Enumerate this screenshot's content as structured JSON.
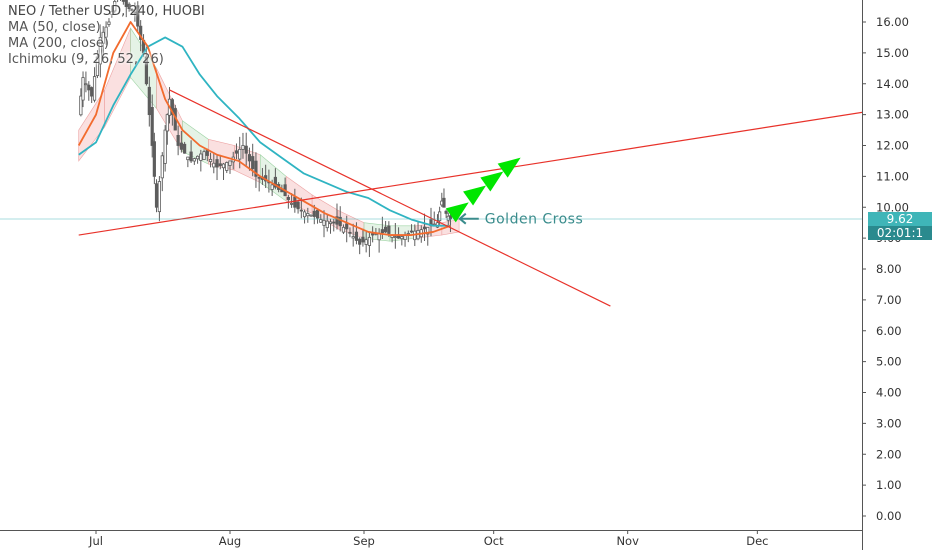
{
  "legend": {
    "title": "NEO / Tether USD, 240, HUOBI",
    "ma50": "MA (50, close)",
    "ma200": "MA (200, close)",
    "ichimoku": "Ichimoku (9, 26, 52, 26)"
  },
  "price_tags": {
    "last_price": "9.62",
    "countdown": "02:01:1"
  },
  "colors": {
    "candle": "#5d5d5d",
    "ma50": "#f26b2e",
    "ma200": "#2fb4c2",
    "trendline": "#e8322a",
    "cloud_bear": "#f5c7c7",
    "cloud_bull": "#cfe9d2",
    "arrow": "#00e600",
    "annotation": "#3a8c8c",
    "price_tag_bg": "#3fb5b8",
    "countdown_bg": "#2a8a8e",
    "axis_text": "#333333",
    "axis_line": "#555555"
  },
  "chart_data": {
    "type": "candlestick",
    "symbol": "NEO / Tether USD",
    "interval": "240",
    "exchange": "HUOBI",
    "y_axis": {
      "ticks": [
        "0.00",
        "1.00",
        "2.00",
        "3.00",
        "4.00",
        "5.00",
        "6.00",
        "7.00",
        "8.00",
        "9.00",
        "10.00",
        "11.00",
        "12.00",
        "13.00",
        "14.00",
        "15.00",
        "16.00"
      ],
      "range": [
        -0.3,
        16.8
      ]
    },
    "x_axis": {
      "ticks": [
        "Jul",
        "Aug",
        "Sep",
        "Oct",
        "Nov",
        "Dec"
      ]
    },
    "price_path": [
      [
        "Jun 27",
        13.0
      ],
      [
        "Jun 28",
        14.2
      ],
      [
        "Jun 30",
        13.6
      ],
      [
        "Jul 2",
        15.5
      ],
      [
        "Jul 4",
        16.0
      ],
      [
        "Jul 6",
        17.0
      ],
      [
        "Jul 8",
        16.5
      ],
      [
        "Jul 10",
        16.3
      ],
      [
        "Jul 12",
        15.0
      ],
      [
        "Jul 14",
        12.0
      ],
      [
        "Jul 15",
        10.0
      ],
      [
        "Jul 17",
        12.5
      ],
      [
        "Jul 18",
        13.5
      ],
      [
        "Jul 20",
        12.0
      ],
      [
        "Jul 23",
        11.5
      ],
      [
        "Jul 26",
        11.8
      ],
      [
        "Jul 29",
        11.3
      ],
      [
        "Aug 1",
        11.5
      ],
      [
        "Aug 4",
        12.0
      ],
      [
        "Aug 7",
        11.0
      ],
      [
        "Aug 10",
        10.8
      ],
      [
        "Aug 13",
        10.5
      ],
      [
        "Aug 16",
        10.0
      ],
      [
        "Aug 19",
        9.8
      ],
      [
        "Aug 22",
        9.6
      ],
      [
        "Aug 25",
        9.5
      ],
      [
        "Aug 28",
        9.3
      ],
      [
        "Aug 31",
        8.8
      ],
      [
        "Sep 3",
        9.1
      ],
      [
        "Sep 6",
        9.2
      ],
      [
        "Sep 9",
        9.0
      ],
      [
        "Sep 12",
        9.2
      ],
      [
        "Sep 15",
        9.3
      ],
      [
        "Sep 18",
        9.5
      ],
      [
        "Sep 19",
        10.2
      ],
      [
        "Sep 20",
        9.8
      ],
      [
        "Sep 21",
        9.62
      ]
    ],
    "ma50": [
      [
        "Jun 27",
        12.0
      ],
      [
        "Jul 1",
        13.0
      ],
      [
        "Jul 5",
        15.0
      ],
      [
        "Jul 9",
        16.0
      ],
      [
        "Jul 13",
        15.2
      ],
      [
        "Jul 17",
        13.5
      ],
      [
        "Jul 21",
        12.5
      ],
      [
        "Jul 25",
        12.0
      ],
      [
        "Jul 29",
        11.7
      ],
      [
        "Aug 3",
        11.5
      ],
      [
        "Aug 8",
        11.0
      ],
      [
        "Aug 13",
        10.6
      ],
      [
        "Aug 18",
        10.2
      ],
      [
        "Aug 23",
        9.8
      ],
      [
        "Aug 28",
        9.5
      ],
      [
        "Sep 2",
        9.2
      ],
      [
        "Sep 7",
        9.1
      ],
      [
        "Sep 12",
        9.1
      ],
      [
        "Sep 17",
        9.2
      ],
      [
        "Sep 21",
        9.4
      ]
    ],
    "ma200": [
      [
        "Jun 27",
        11.7
      ],
      [
        "Jul 1",
        12.1
      ],
      [
        "Jul 5",
        13.3
      ],
      [
        "Jul 9",
        14.3
      ],
      [
        "Jul 13",
        15.2
      ],
      [
        "Jul 17",
        15.5
      ],
      [
        "Jul 21",
        15.2
      ],
      [
        "Jul 25",
        14.3
      ],
      [
        "Jul 29",
        13.6
      ],
      [
        "Aug 3",
        12.9
      ],
      [
        "Aug 8",
        12.1
      ],
      [
        "Aug 13",
        11.6
      ],
      [
        "Aug 18",
        11.1
      ],
      [
        "Aug 23",
        10.8
      ],
      [
        "Aug 28",
        10.5
      ],
      [
        "Sep 2",
        10.3
      ],
      [
        "Sep 7",
        9.9
      ],
      [
        "Sep 12",
        9.6
      ],
      [
        "Sep 17",
        9.4
      ],
      [
        "Sep 21",
        9.4
      ]
    ],
    "ichimoku_cloud_upper": [
      [
        "Jun 27",
        12.5
      ],
      [
        "Jul 3",
        13.8
      ],
      [
        "Jul 9",
        15.8
      ],
      [
        "Jul 15",
        14.5
      ],
      [
        "Jul 21",
        12.8
      ],
      [
        "Jul 27",
        12.2
      ],
      [
        "Aug 2",
        12.0
      ],
      [
        "Aug 8",
        11.7
      ],
      [
        "Aug 14",
        11.0
      ],
      [
        "Aug 20",
        10.4
      ],
      [
        "Aug 26",
        9.9
      ],
      [
        "Sep 1",
        9.5
      ],
      [
        "Sep 7",
        9.4
      ],
      [
        "Sep 13",
        9.4
      ],
      [
        "Sep 19",
        9.5
      ],
      [
        "Sep 23",
        9.6
      ]
    ],
    "ichimoku_cloud_lower": [
      [
        "Jun 27",
        11.5
      ],
      [
        "Jul 3",
        12.6
      ],
      [
        "Jul 9",
        14.2
      ],
      [
        "Jul 15",
        13.2
      ],
      [
        "Jul 21",
        11.8
      ],
      [
        "Jul 27",
        11.4
      ],
      [
        "Aug 2",
        11.2
      ],
      [
        "Aug 8",
        10.8
      ],
      [
        "Aug 14",
        10.2
      ],
      [
        "Aug 20",
        9.8
      ],
      [
        "Aug 26",
        9.3
      ],
      [
        "Sep 1",
        9.0
      ],
      [
        "Sep 7",
        8.9
      ],
      [
        "Sep 13",
        9.0
      ],
      [
        "Sep 19",
        9.1
      ],
      [
        "Sep 23",
        9.2
      ]
    ],
    "trendlines": [
      {
        "name": "rising support",
        "from": [
          "Jun 27",
          9.1
        ],
        "to": [
          "Dec 31",
          13.2
        ]
      },
      {
        "name": "falling resistance",
        "from": [
          "Jul 18",
          13.8
        ],
        "to": [
          "Oct 28",
          6.8
        ]
      }
    ],
    "annotations": [
      {
        "text": "Golden Cross",
        "at": [
          "Sep 22",
          9.5
        ]
      }
    ],
    "projected_arrows": [
      [
        "Sep 22",
        9.8
      ],
      [
        "Sep 26",
        10.35
      ],
      [
        "Sep 30",
        10.8
      ],
      [
        "Oct 4",
        11.25
      ]
    ],
    "last_price": 9.62
  }
}
